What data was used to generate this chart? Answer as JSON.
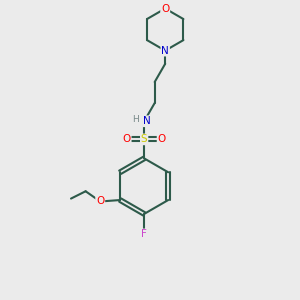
{
  "background_color": "#ebebeb",
  "bond_color": "#2d5a4a",
  "atom_colors": {
    "C": "#000000",
    "N": "#0000cc",
    "O": "#ff0000",
    "S": "#cccc00",
    "F": "#cc44cc",
    "H": "#778888"
  },
  "figsize": [
    3.0,
    3.0
  ],
  "dpi": 100,
  "lw": 1.5
}
